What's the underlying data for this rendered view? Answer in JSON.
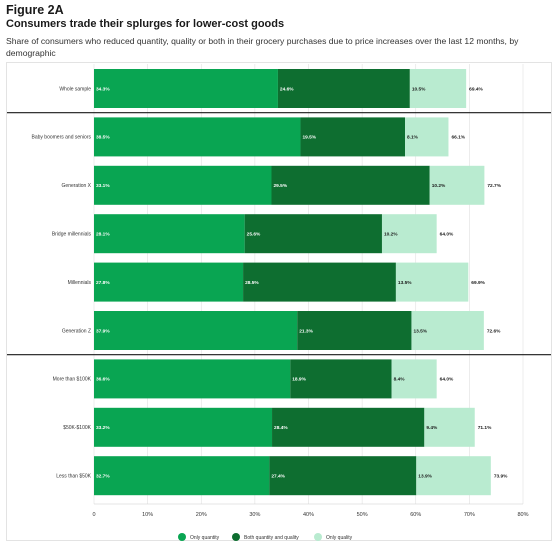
{
  "figure": {
    "label": "Figure 2A",
    "title": "Consumers trade their splurges for lower-cost goods",
    "subtitle": "Share of consumers who reduced quantity, quality or both in their grocery purchases due to price increases over the last 12 months, by demographic"
  },
  "colors": {
    "only_quantity": "#09a552",
    "both": "#0e6e30",
    "only_quality": "#b9ebd0",
    "separator": "#1a1a1a",
    "grid": "#e0e0e0"
  },
  "chart_data": {
    "type": "bar",
    "orientation": "horizontal",
    "stacked": true,
    "categories": [
      "Whole sample",
      "Baby boomers and seniors",
      "Generation X",
      "Bridge millennials",
      "Millennials",
      "Generation Z",
      "More than $100K",
      "$50K-$100K",
      "Less than $50K"
    ],
    "series": [
      {
        "name": "Only quantity",
        "values": [
          34.3,
          38.5,
          33.1,
          28.1,
          27.8,
          37.9,
          36.6,
          33.2,
          32.7
        ],
        "labels": [
          "34.3%",
          "38.5%",
          "33.1%",
          "28.1%",
          "27.8%",
          "37.9%",
          "36.6%",
          "33.2%",
          "32.7%"
        ]
      },
      {
        "name": "Both quantity and quality",
        "values": [
          24.6,
          19.5,
          29.5,
          25.6,
          28.5,
          21.3,
          18.9,
          28.4,
          27.4
        ],
        "labels": [
          "24.6%",
          "19.5%",
          "29.5%",
          "25.6%",
          "28.5%",
          "21.3%",
          "18.9%",
          "28.4%",
          "27.4%"
        ]
      },
      {
        "name": "Only quality",
        "values": [
          10.5,
          8.1,
          10.2,
          10.2,
          13.5,
          13.5,
          8.4,
          9.4,
          13.9
        ],
        "labels": [
          "10.5%",
          "8.1%",
          "10.2%",
          "10.2%",
          "13.5%",
          "13.5%",
          "8.4%",
          "9.4%",
          "13.9%"
        ]
      }
    ],
    "totals": [
      69.4,
      66.1,
      72.7,
      64.0,
      69.9,
      72.6,
      64.0,
      71.1,
      73.9
    ],
    "total_labels": [
      "69.4%",
      "66.1%",
      "72.7%",
      "64.0%",
      "69.9%",
      "72.6%",
      "64.0%",
      "71.1%",
      "73.9%"
    ],
    "xlim": [
      0,
      80
    ],
    "xticks": [
      0,
      10,
      20,
      30,
      40,
      50,
      60,
      70,
      80
    ],
    "xtick_labels": [
      "0",
      "10%",
      "20%",
      "30%",
      "40%",
      "50%",
      "60%",
      "70%",
      "80%"
    ],
    "group_separators_after": [
      0,
      5
    ],
    "legend_placement": "bottom-center",
    "legend": [
      "Only quantity",
      "Both quantity and quality",
      "Only quality"
    ],
    "grid": true
  }
}
